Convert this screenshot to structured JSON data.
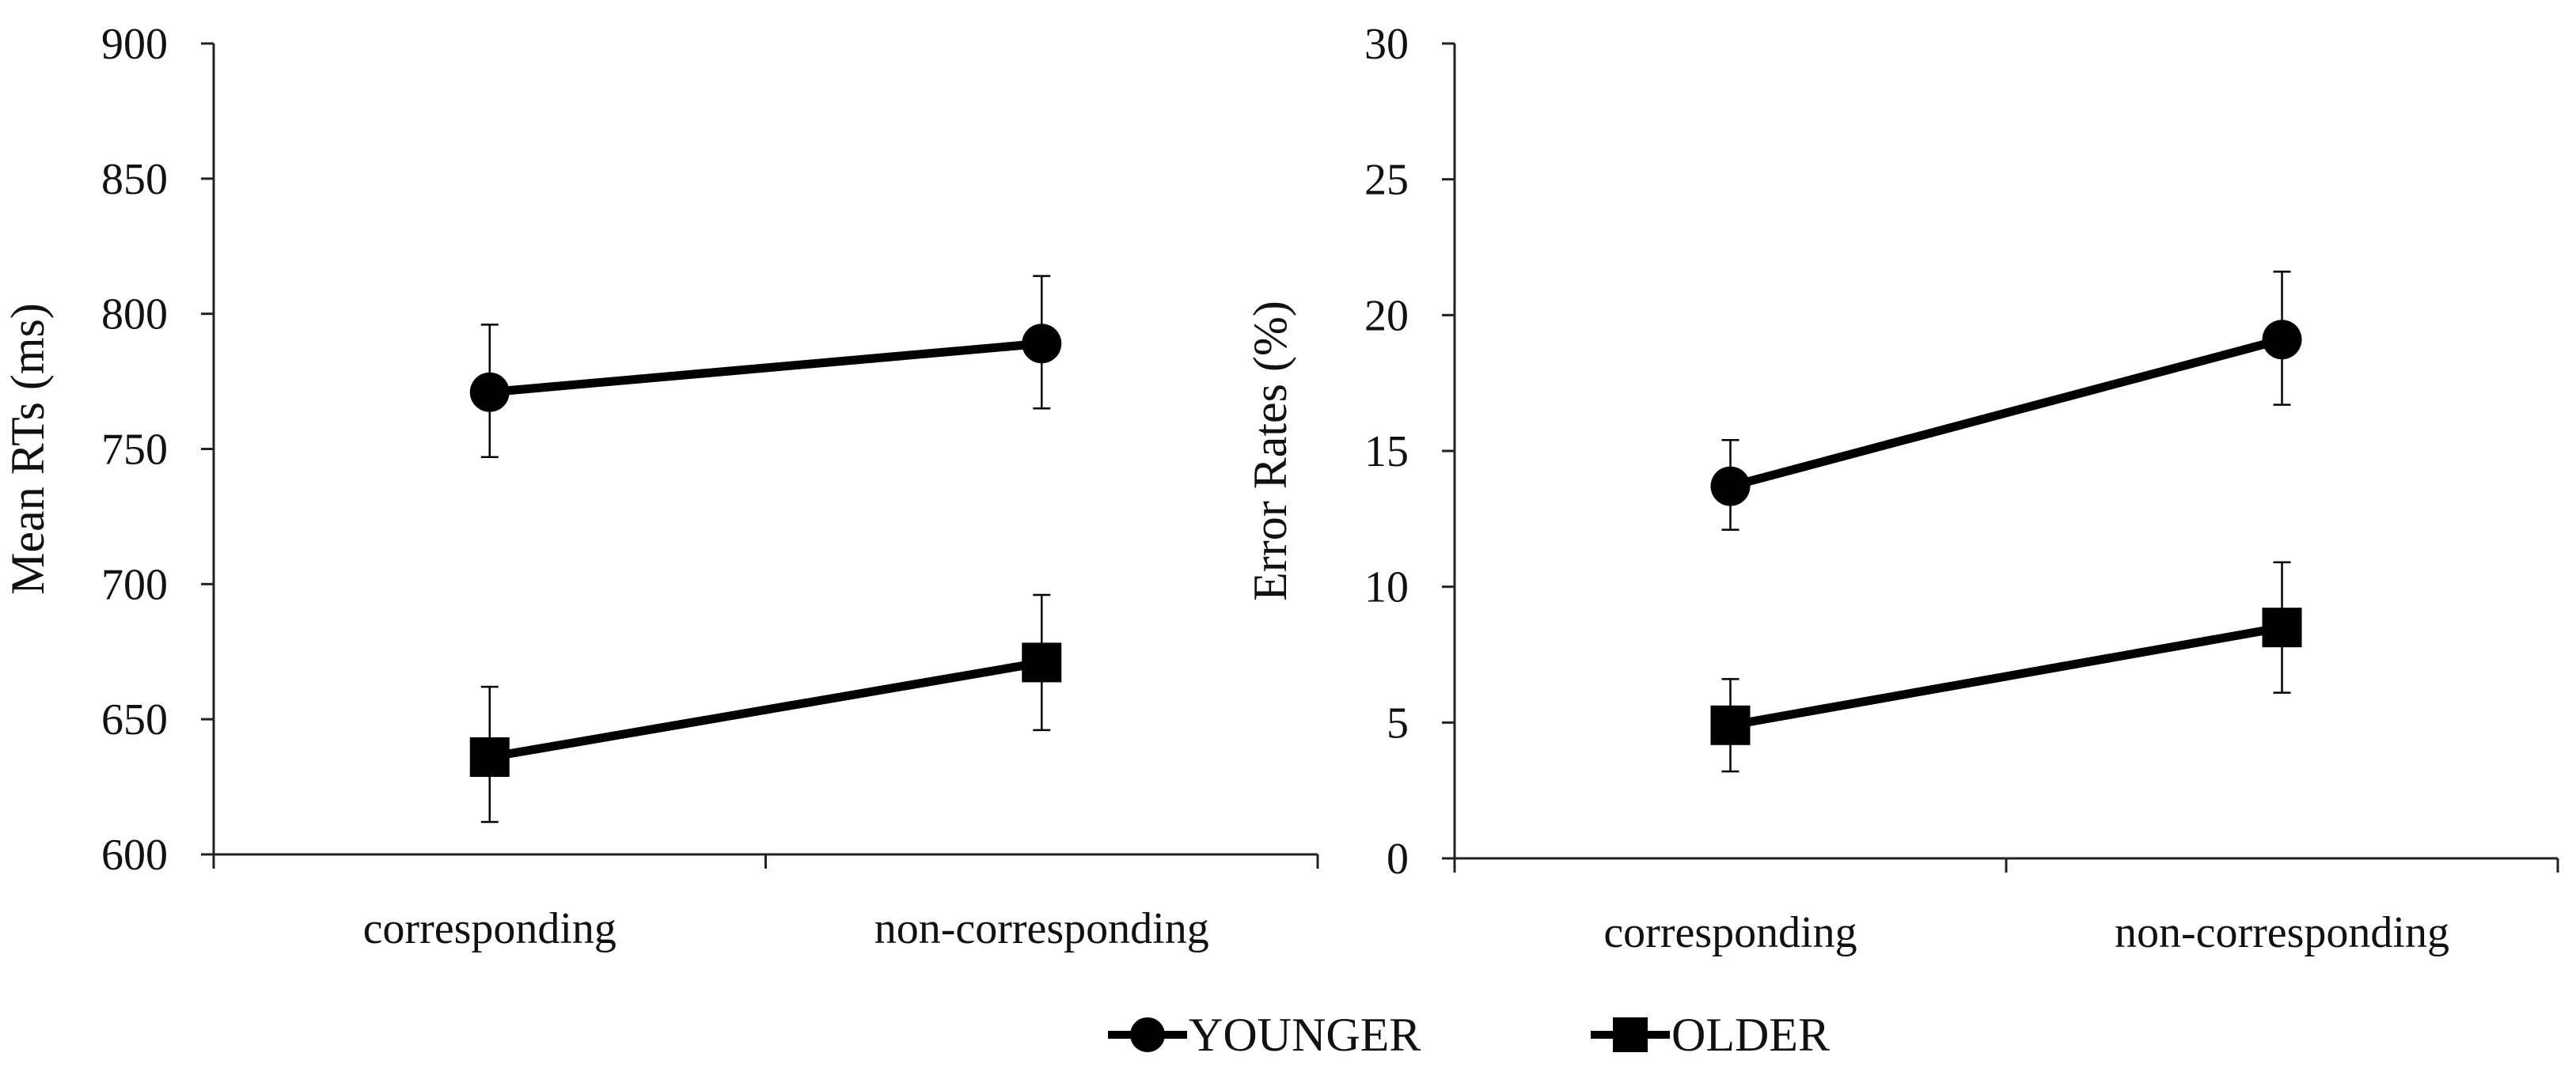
{
  "chart_data": [
    {
      "type": "line",
      "title": "",
      "xlabel": "",
      "ylabel": "Mean RTs (ms)",
      "categories": [
        "corresponding",
        "non-corresponding"
      ],
      "ylim": [
        600,
        900
      ],
      "yticks": [
        600,
        650,
        700,
        750,
        800,
        850,
        900
      ],
      "grid": false,
      "series": [
        {
          "name": "YOUNGER",
          "marker": "circle",
          "values": [
            771,
            789
          ],
          "error_low": [
            747,
            765
          ],
          "error_high": [
            796,
            814
          ]
        },
        {
          "name": "OLDER",
          "marker": "square",
          "values": [
            636,
            671
          ],
          "error_low": [
            612,
            646
          ],
          "error_high": [
            662,
            696
          ]
        }
      ]
    },
    {
      "type": "line",
      "title": "",
      "xlabel": "",
      "ylabel": "Error Rates (%)",
      "categories": [
        "corresponding",
        "non-corresponding"
      ],
      "ylim": [
        0,
        30
      ],
      "yticks": [
        0,
        5,
        10,
        15,
        20,
        25,
        30
      ],
      "grid": false,
      "series": [
        {
          "name": "YOUNGER",
          "marker": "circle",
          "values": [
            13.7,
            19.1
          ],
          "error_low": [
            12.1,
            16.7
          ],
          "error_high": [
            15.4,
            21.6
          ]
        },
        {
          "name": "OLDER",
          "marker": "square",
          "values": [
            4.9,
            8.5
          ],
          "error_low": [
            3.2,
            6.1
          ],
          "error_high": [
            6.6,
            10.9
          ]
        }
      ]
    }
  ],
  "legend": {
    "placement": "bottom-center",
    "items": [
      {
        "label": "YOUNGER",
        "marker": "circle"
      },
      {
        "label": "OLDER",
        "marker": "square"
      }
    ]
  },
  "colors": {
    "line": "#000000",
    "text": "#111111",
    "background": "#ffffff"
  }
}
